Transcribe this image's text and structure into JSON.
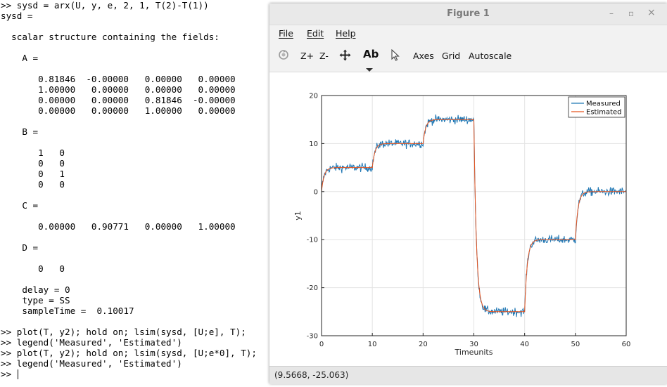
{
  "terminal": {
    "lines": [
      ">> sysd = arx(U, y, e, 2, 1, T(2)-T(1))",
      "sysd =",
      "",
      "  scalar structure containing the fields:",
      "",
      "    A =",
      "",
      "       0.81846  -0.00000   0.00000   0.00000",
      "       1.00000   0.00000   0.00000   0.00000",
      "       0.00000   0.00000   0.81846  -0.00000",
      "       0.00000   0.00000   1.00000   0.00000",
      "",
      "    B =",
      "",
      "       1   0",
      "       0   0",
      "       0   1",
      "       0   0",
      "",
      "    C =",
      "",
      "       0.00000   0.90771   0.00000   1.00000",
      "",
      "    D =",
      "",
      "       0   0",
      "",
      "    delay = 0",
      "    type = SS",
      "    sampleTime =  0.10017",
      "",
      ">> plot(T, y2); hold on; lsim(sysd, [U;e], T);",
      ">> legend('Measured', 'Estimated')",
      ">> plot(T, y2); hold on; lsim(sysd, [U;e*0], T);",
      ">> legend('Measured', 'Estimated')",
      ">> "
    ]
  },
  "figure": {
    "title": "Figure 1",
    "menu": [
      "File",
      "Edit",
      "Help"
    ],
    "toolbar": {
      "rotate_icon": "rotate-icon",
      "zoom_in": "Z+",
      "zoom_out": "Z-",
      "pan_icon": "pan-icon",
      "text_tool": "Ab",
      "pointer_icon": "pointer-icon",
      "axes": "Axes",
      "grid": "Grid",
      "autoscale": "Autoscale"
    },
    "window_buttons": {
      "minimize": "–",
      "restore": "▫",
      "close": "×"
    },
    "status": "(9.5668, -25.063)"
  },
  "chart_data": {
    "type": "line",
    "xlabel": "Timeunits",
    "ylabel": "y1",
    "xlim": [
      0,
      60
    ],
    "ylim": [
      -30,
      20
    ],
    "xticks": [
      0,
      10,
      20,
      30,
      40,
      50,
      60
    ],
    "yticks": [
      -30,
      -20,
      -10,
      0,
      10,
      20
    ],
    "grid": true,
    "legend_position": "top-right",
    "series": [
      {
        "name": "Measured",
        "color": "#1f77b4",
        "style": "noisy"
      },
      {
        "name": "Estimated",
        "color": "#e8541e",
        "style": "smooth"
      }
    ],
    "steps": [
      {
        "t": 0,
        "level": 5
      },
      {
        "t": 10,
        "level": 10
      },
      {
        "t": 20,
        "level": 15
      },
      {
        "t": 30,
        "level": -25
      },
      {
        "t": 40,
        "level": -10
      },
      {
        "t": 50,
        "level": 0
      }
    ],
    "initial_level": 0,
    "time_constant": 0.5
  }
}
